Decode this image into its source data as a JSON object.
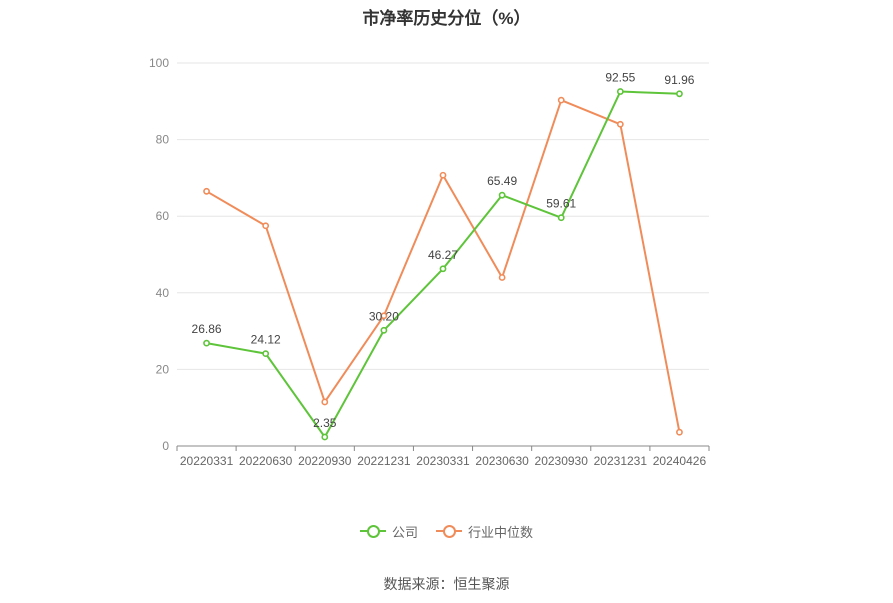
{
  "chart_data": {
    "type": "line",
    "title": "市净率历史分位（%）",
    "categories": [
      "20220331",
      "20220630",
      "20220930",
      "20221231",
      "20230331",
      "20230630",
      "20230930",
      "20231231",
      "20240426"
    ],
    "ylim": [
      0,
      100
    ],
    "yticks": [
      0,
      20,
      40,
      60,
      80,
      100
    ],
    "grid": true,
    "legend_position": "bottom",
    "series": [
      {
        "name": "公司",
        "color": "#5ec43a",
        "values": [
          26.86,
          24.12,
          2.35,
          30.2,
          46.27,
          65.49,
          59.61,
          92.55,
          91.96
        ],
        "labels": [
          "26.86",
          "24.12",
          "2.35",
          "30.20",
          "46.27",
          "65.49",
          "59.61",
          "92.55",
          "91.96"
        ]
      },
      {
        "name": "行业中位数",
        "color": "#f08c5a",
        "values": [
          66.5,
          57.5,
          11.5,
          34.0,
          70.7,
          44.0,
          90.3,
          84.0,
          3.6
        ]
      }
    ]
  },
  "footer": {
    "source": "数据来源：恒生聚源"
  }
}
